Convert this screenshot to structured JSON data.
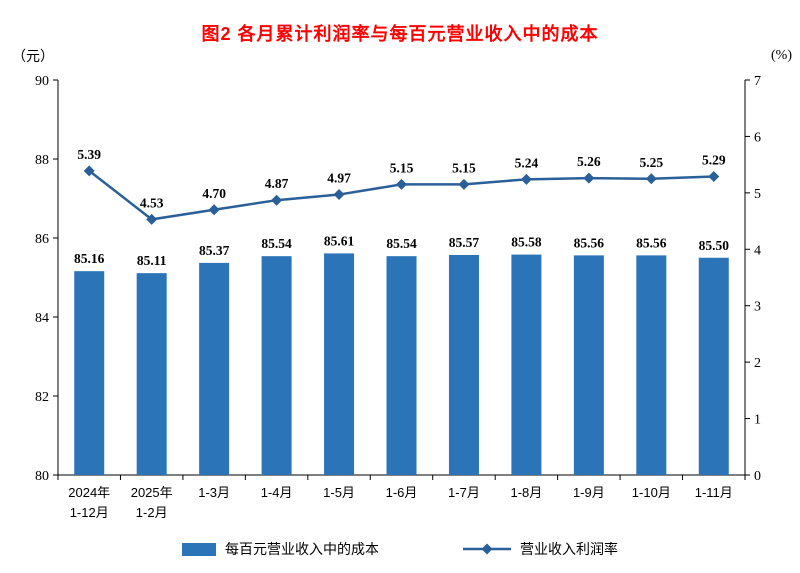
{
  "chart_data": {
    "type": "bar+line",
    "title": "图2  各月累计利润率与每百元营业收入中的成本",
    "categories": [
      [
        "2024年",
        "1-12月"
      ],
      [
        "2025年",
        "1-2月"
      ],
      [
        "1-3月"
      ],
      [
        "1-4月"
      ],
      [
        "1-5月"
      ],
      [
        "1-6月"
      ],
      [
        "1-7月"
      ],
      [
        "1-8月"
      ],
      [
        "1-9月"
      ],
      [
        "1-10月"
      ],
      [
        "1-11月"
      ]
    ],
    "series": [
      {
        "name": "每百元营业收入中的成本",
        "type": "bar",
        "axis": "left",
        "color": "#2B74B8",
        "values": [
          85.16,
          85.11,
          85.37,
          85.54,
          85.61,
          85.54,
          85.57,
          85.58,
          85.56,
          85.56,
          85.5
        ]
      },
      {
        "name": "营业收入利润率",
        "type": "line",
        "axis": "right",
        "color": "#2A6099",
        "values": [
          5.39,
          4.53,
          4.7,
          4.87,
          4.97,
          5.15,
          5.15,
          5.24,
          5.26,
          5.25,
          5.29
        ]
      }
    ],
    "left_axis": {
      "unit": "（元）",
      "min": 80,
      "max": 90,
      "ticks": [
        80,
        82,
        84,
        86,
        88,
        90
      ]
    },
    "right_axis": {
      "unit": "(%)",
      "min": 0,
      "max": 7,
      "ticks": [
        0,
        1,
        2,
        3,
        4,
        5,
        6,
        7
      ]
    },
    "legend": {
      "bar_label": "每百元营业收入中的成本",
      "line_label": "营业收入利润率"
    },
    "title_color": "#ff0000",
    "grid": false,
    "legend_position": "bottom"
  }
}
